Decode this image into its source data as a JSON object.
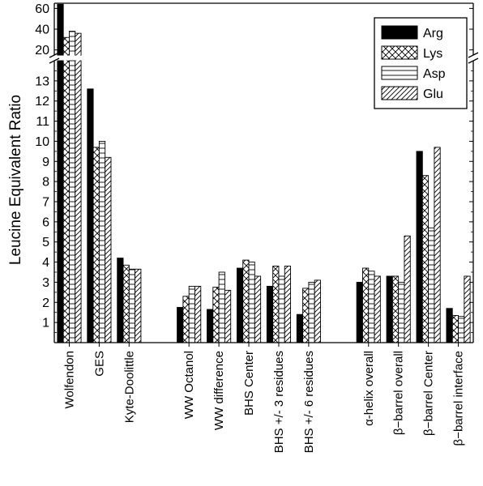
{
  "chart_data": {
    "type": "bar",
    "title": "",
    "xlabel": "",
    "ylabel": "Leucine Equivalent Ratio",
    "y_axis": {
      "lower_range": [
        0,
        14
      ],
      "upper_range": [
        15,
        65
      ],
      "lower_ticks": [
        1,
        2,
        3,
        4,
        5,
        6,
        7,
        8,
        9,
        10,
        11,
        12,
        13
      ],
      "upper_ticks": [
        20,
        40,
        60
      ],
      "broken": true
    },
    "legend_position": "top-right",
    "categories": [
      "Wolfendon",
      "GES",
      "Kyte-Doolittle",
      "",
      "WW Octanol",
      "WW difference",
      "BHS Center",
      "BHS +/- 3 residues",
      "BHS +/- 6 residues",
      "",
      "α-helix overall",
      "β−barrel overall",
      "β−barrel Center",
      "β−barrel interface"
    ],
    "series": [
      {
        "name": "Arg",
        "pattern": "solid",
        "values": [
          64,
          12.6,
          4.2,
          null,
          1.75,
          1.65,
          3.7,
          2.8,
          1.4,
          null,
          3.0,
          3.3,
          9.5,
          1.7
        ]
      },
      {
        "name": "Lys",
        "pattern": "crosshatch",
        "values": [
          32,
          9.7,
          3.85,
          null,
          2.3,
          2.75,
          4.1,
          3.8,
          2.7,
          null,
          3.7,
          3.3,
          8.3,
          1.35
        ]
      },
      {
        "name": "Asp",
        "pattern": "horizontal",
        "values": [
          38,
          10.0,
          3.65,
          null,
          2.8,
          3.5,
          4.0,
          3.3,
          3.0,
          null,
          3.55,
          3.0,
          5.7,
          1.3
        ]
      },
      {
        "name": "Glu",
        "pattern": "diagonal",
        "values": [
          36,
          9.2,
          3.65,
          null,
          2.8,
          2.6,
          3.3,
          3.8,
          3.1,
          null,
          3.3,
          5.3,
          9.7,
          3.3
        ]
      }
    ]
  }
}
